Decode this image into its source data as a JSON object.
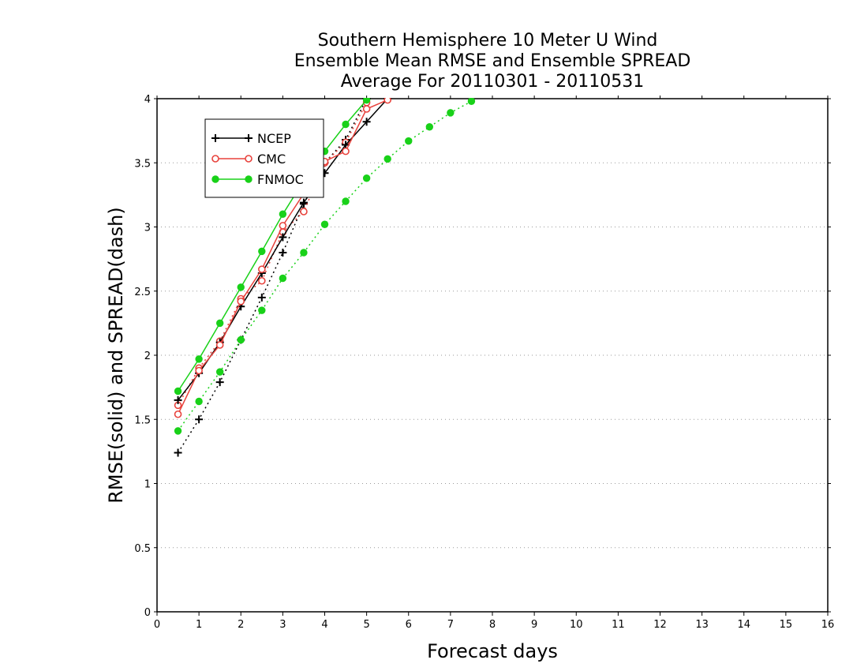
{
  "chart_data": {
    "type": "line",
    "title": [
      "Southern Hemisphere 10 Meter U Wind",
      "Ensemble Mean RMSE and Ensemble SPREAD",
      "Average For 20110301 - 20110531"
    ],
    "xlabel": "Forecast days",
    "ylabel": "RMSE(solid) and SPREAD(dash)",
    "xlim": [
      0,
      16
    ],
    "ylim": [
      0,
      4
    ],
    "xticks": [
      "0",
      "1",
      "2",
      "3",
      "4",
      "5",
      "6",
      "7",
      "8",
      "9",
      "10",
      "11",
      "12",
      "13",
      "14",
      "15",
      "16"
    ],
    "yticks": [
      "0",
      "0.5",
      "1",
      "1.5",
      "2",
      "2.5",
      "3",
      "3.5",
      "4"
    ],
    "grid": "horizontal dotted",
    "legend": {
      "position": "top-left",
      "entries": [
        "NCEP",
        "CMC",
        "FNMOC"
      ]
    },
    "series": [
      {
        "name": "NCEP",
        "metric": "RMSE",
        "color": "#000000",
        "marker": "plus",
        "line": "solid",
        "x": [
          0.5,
          1.0,
          1.5,
          2.0,
          2.5,
          3.0,
          3.5,
          4.0,
          4.5,
          5.0,
          5.5
        ],
        "y": [
          1.65,
          1.86,
          2.1,
          2.38,
          2.64,
          2.92,
          3.19,
          3.42,
          3.64,
          3.82,
          4.0
        ]
      },
      {
        "name": "NCEP",
        "metric": "SPREAD",
        "color": "#000000",
        "marker": "plus",
        "line": "dotted",
        "x": [
          0.5,
          1.0,
          1.5,
          2.0,
          2.5,
          3.0,
          3.5,
          4.0,
          4.5,
          5.0
        ],
        "y": [
          1.24,
          1.5,
          1.79,
          2.12,
          2.45,
          2.8,
          3.18,
          3.5,
          3.68,
          4.0
        ]
      },
      {
        "name": "CMC",
        "metric": "RMSE",
        "color": "#e8423c",
        "marker": "open-circle",
        "line": "solid",
        "x": [
          0.5,
          1.0,
          1.5,
          2.0,
          2.5,
          3.0,
          3.5,
          4.0,
          4.5,
          5.0,
          5.5
        ],
        "y": [
          1.54,
          1.88,
          2.08,
          2.42,
          2.67,
          3.01,
          3.26,
          3.51,
          3.59,
          3.92,
          3.99
        ]
      },
      {
        "name": "CMC",
        "metric": "SPREAD",
        "color": "#e8423c",
        "marker": "open-circle",
        "line": "dotted",
        "x": [
          0.5,
          1.0,
          1.5,
          2.0,
          2.5,
          3.0,
          3.5,
          4.0,
          4.5,
          5.0
        ],
        "y": [
          1.61,
          1.9,
          2.11,
          2.44,
          2.58,
          2.96,
          3.12,
          3.5,
          3.66,
          3.97
        ]
      },
      {
        "name": "FNMOC",
        "metric": "RMSE",
        "color": "#19d119",
        "marker": "filled-circle",
        "line": "solid",
        "x": [
          0.5,
          1.0,
          1.5,
          2.0,
          2.5,
          3.0,
          3.5,
          4.0,
          4.5,
          5.0
        ],
        "y": [
          1.72,
          1.97,
          2.25,
          2.53,
          2.81,
          3.1,
          3.36,
          3.59,
          3.8,
          3.99
        ]
      },
      {
        "name": "FNMOC",
        "metric": "SPREAD",
        "color": "#19d119",
        "marker": "filled-circle",
        "line": "dotted",
        "x": [
          0.5,
          1.0,
          1.5,
          2.0,
          2.5,
          3.0,
          3.5,
          4.0,
          4.5,
          5.0,
          5.5,
          6.0,
          6.5,
          7.0,
          7.5
        ],
        "y": [
          1.41,
          1.64,
          1.87,
          2.12,
          2.35,
          2.6,
          2.8,
          3.02,
          3.2,
          3.38,
          3.53,
          3.67,
          3.78,
          3.89,
          3.98
        ]
      }
    ]
  }
}
